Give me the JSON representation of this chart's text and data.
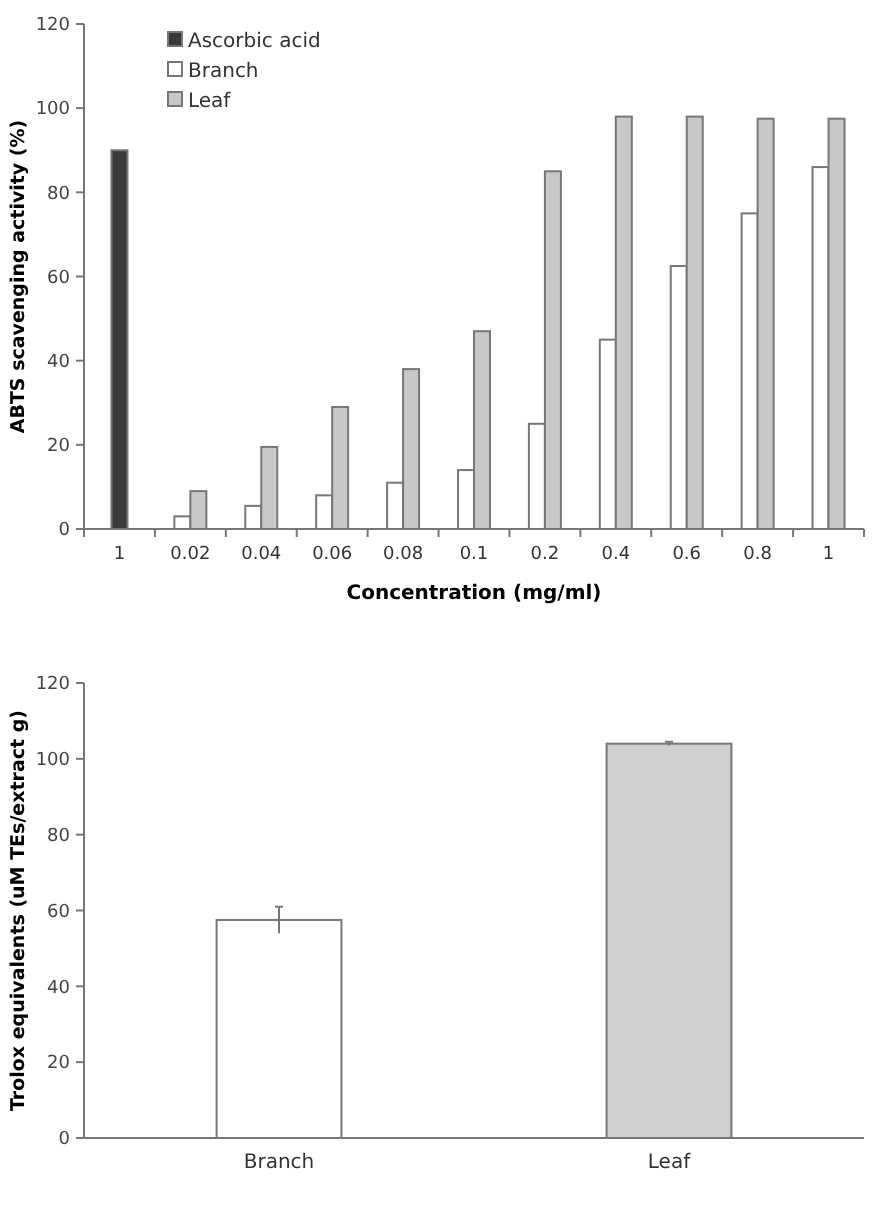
{
  "chart_data": [
    {
      "type": "bar",
      "xlabel": "Concentration (mg/ml)",
      "ylabel": "ABTS scavenging activity (%)",
      "categories": [
        "1",
        "0.02",
        "0.04",
        "0.06",
        "0.08",
        "0.1",
        "0.2",
        "0.4",
        "0.6",
        "0.8",
        "1"
      ],
      "series": [
        {
          "name": "Ascorbic acid",
          "color": "#3a3a3a",
          "values": [
            90,
            null,
            null,
            null,
            null,
            null,
            null,
            null,
            null,
            null,
            null
          ]
        },
        {
          "name": "Branch",
          "color": "#ffffff",
          "values": [
            null,
            3,
            5.5,
            8,
            11,
            14,
            25,
            45,
            62.5,
            75,
            86
          ]
        },
        {
          "name": "Leaf",
          "color": "#c8c8c8",
          "values": [
            null,
            9,
            19.5,
            29,
            38,
            47,
            85,
            98,
            98,
            97.5,
            97.5
          ]
        }
      ],
      "ylim": [
        0,
        120
      ],
      "yticks": [
        0,
        20,
        40,
        60,
        80,
        100,
        120
      ],
      "legend": "top left",
      "grid": false
    },
    {
      "type": "bar",
      "ylabel": "Trolox equivalents (uM TEs/extract g)",
      "categories": [
        "Branch",
        "Leaf"
      ],
      "values": [
        57.5,
        104
      ],
      "colors": [
        "#ffffff",
        "#d0d0d0"
      ],
      "errors": [
        3.5,
        0.5
      ],
      "ylim": [
        0,
        120
      ],
      "yticks": [
        0,
        20,
        40,
        60,
        80,
        100,
        120
      ],
      "grid": false
    }
  ]
}
